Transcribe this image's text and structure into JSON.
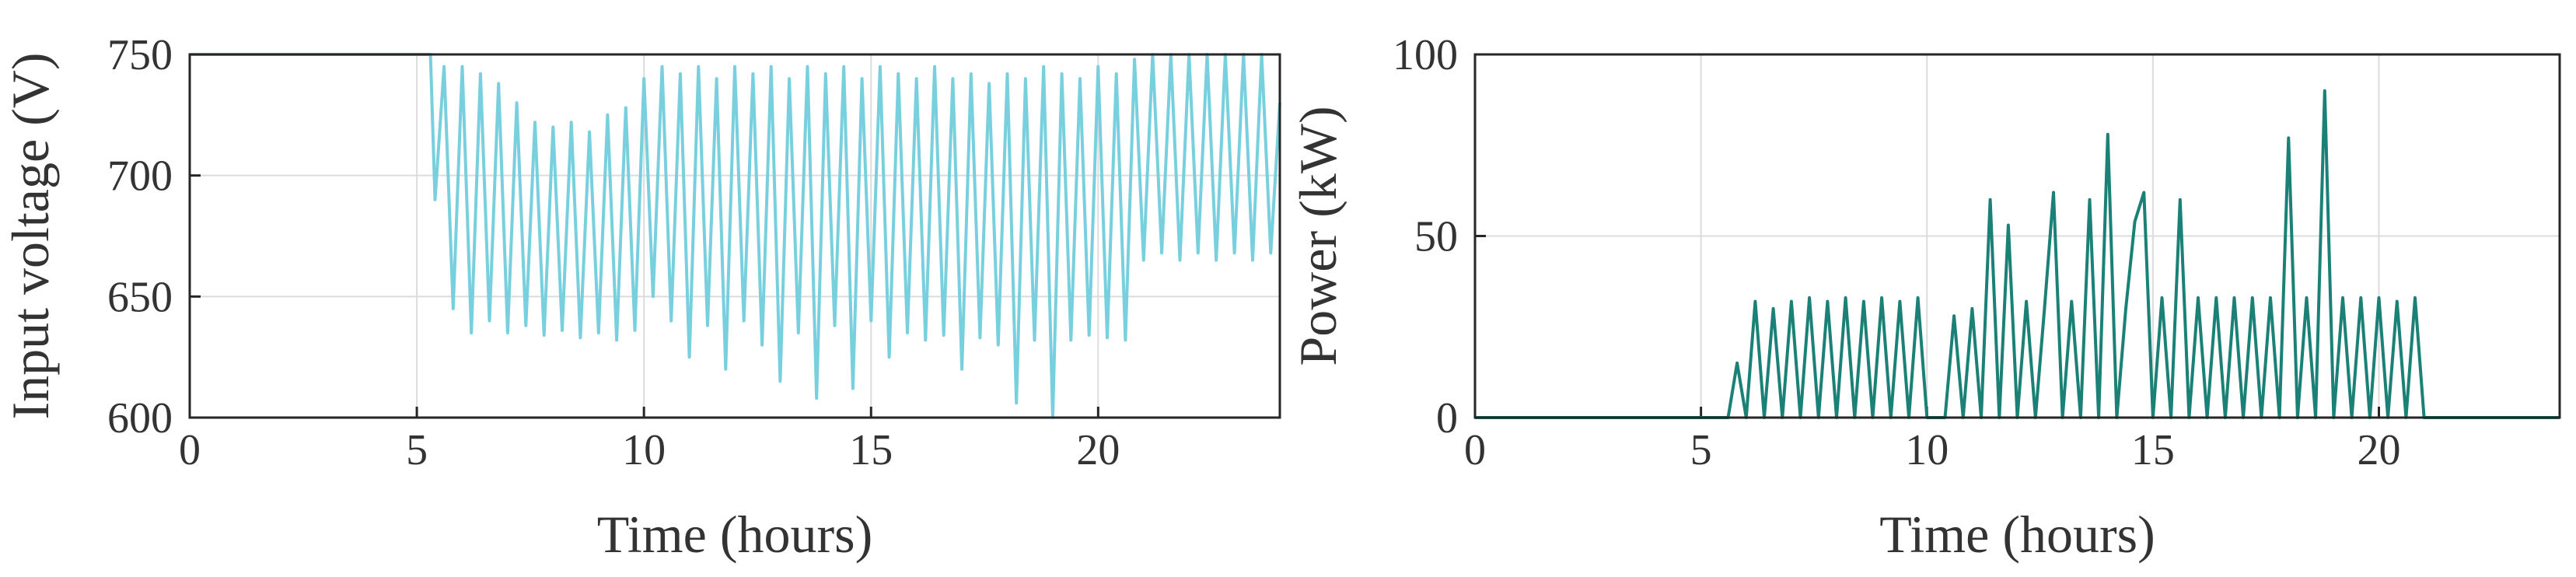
{
  "chart_data": [
    {
      "type": "line",
      "xlabel": "Time (hours)",
      "ylabel": "Input voltage (V)",
      "color": "#78cfdd",
      "grid": true,
      "xlim": [
        0,
        24
      ],
      "xticks": [
        0,
        5,
        10,
        15,
        20
      ],
      "ylim": [
        600,
        750
      ],
      "yticks": [
        600,
        650,
        700,
        750
      ],
      "x": [
        0,
        5.3,
        5.4,
        5.6,
        5.8,
        6.0,
        6.2,
        6.4,
        6.6,
        6.8,
        7.0,
        7.2,
        7.4,
        7.6,
        7.8,
        8.0,
        8.2,
        8.4,
        8.6,
        8.8,
        9.0,
        9.2,
        9.4,
        9.6,
        9.8,
        10.0,
        10.2,
        10.4,
        10.6,
        10.8,
        11.0,
        11.2,
        11.4,
        11.6,
        11.8,
        12.0,
        12.2,
        12.4,
        12.6,
        12.8,
        13.0,
        13.2,
        13.4,
        13.6,
        13.8,
        14.0,
        14.2,
        14.4,
        14.6,
        14.8,
        15.0,
        15.2,
        15.4,
        15.6,
        15.8,
        16.0,
        16.2,
        16.4,
        16.6,
        16.8,
        17.0,
        17.2,
        17.4,
        17.6,
        17.8,
        18.0,
        18.2,
        18.4,
        18.6,
        18.8,
        19.0,
        19.2,
        19.4,
        19.6,
        19.8,
        20.0,
        20.2,
        20.4,
        20.6,
        20.8,
        21.0,
        21.2,
        21.4,
        21.6,
        21.8,
        22.0,
        22.2,
        22.4,
        22.6,
        22.8,
        23.0,
        23.2,
        23.4,
        23.6,
        23.8,
        24.0
      ],
      "values": [
        750,
        750,
        690,
        745,
        645,
        745,
        635,
        742,
        640,
        738,
        635,
        730,
        638,
        722,
        634,
        720,
        636,
        722,
        633,
        718,
        635,
        725,
        632,
        728,
        636,
        740,
        650,
        745,
        640,
        742,
        625,
        745,
        638,
        740,
        620,
        745,
        640,
        742,
        630,
        745,
        615,
        740,
        635,
        745,
        608,
        742,
        638,
        745,
        612,
        740,
        640,
        745,
        625,
        742,
        635,
        740,
        632,
        745,
        634,
        740,
        620,
        742,
        633,
        738,
        630,
        742,
        606,
        740,
        632,
        745,
        600,
        742,
        632,
        740,
        634,
        745,
        633,
        742,
        632,
        748,
        665,
        750,
        668,
        750,
        665,
        750,
        668,
        750,
        665,
        750,
        668,
        750,
        665,
        750,
        668,
        730
      ]
    },
    {
      "type": "line",
      "xlabel": "Time (hours)",
      "ylabel": "Power (kW)",
      "color": "#1b8076",
      "grid": true,
      "xlim": [
        0,
        24
      ],
      "xticks": [
        0,
        5,
        10,
        15,
        20
      ],
      "ylim": [
        0,
        100
      ],
      "yticks": [
        0,
        50,
        100
      ],
      "x": [
        0,
        5.6,
        5.8,
        6.0,
        6.2,
        6.4,
        6.6,
        6.8,
        7.0,
        7.2,
        7.4,
        7.6,
        7.8,
        8.0,
        8.2,
        8.4,
        8.6,
        8.8,
        9.0,
        9.2,
        9.4,
        9.6,
        9.8,
        10.0,
        10.2,
        10.4,
        10.6,
        10.8,
        11.0,
        11.2,
        11.4,
        11.6,
        11.8,
        12.0,
        12.2,
        12.4,
        12.6,
        12.8,
        13.0,
        13.2,
        13.4,
        13.6,
        13.8,
        14.0,
        14.2,
        14.4,
        14.6,
        14.8,
        15.0,
        15.2,
        15.4,
        15.6,
        15.8,
        16.0,
        16.2,
        16.4,
        16.6,
        16.8,
        17.0,
        17.2,
        17.4,
        17.6,
        17.8,
        18.0,
        18.2,
        18.4,
        18.6,
        18.8,
        19.0,
        19.2,
        19.4,
        19.6,
        19.8,
        20.0,
        20.2,
        20.4,
        20.6,
        20.8,
        21.0,
        24.0
      ],
      "values": [
        0,
        0,
        15,
        0,
        32,
        0,
        30,
        0,
        32,
        0,
        33,
        0,
        32,
        0,
        33,
        0,
        32,
        0,
        33,
        0,
        32,
        0,
        33,
        0,
        0,
        0,
        28,
        0,
        30,
        0,
        60,
        0,
        53,
        0,
        32,
        0,
        30,
        62,
        0,
        32,
        0,
        60,
        0,
        78,
        0,
        30,
        54,
        62,
        0,
        33,
        0,
        60,
        0,
        33,
        0,
        33,
        0,
        33,
        0,
        33,
        0,
        33,
        0,
        77,
        0,
        33,
        0,
        90,
        0,
        33,
        0,
        33,
        0,
        33,
        0,
        32,
        0,
        33,
        0,
        0
      ]
    }
  ]
}
